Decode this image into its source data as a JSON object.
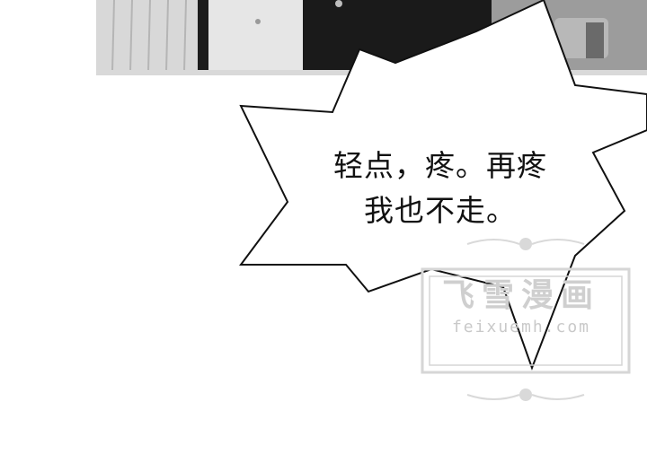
{
  "speech": {
    "line1": "轻点，疼。再疼",
    "line2": "我也不走。"
  },
  "watermark": {
    "title": "飞雪漫画",
    "url": "feixuemh.com"
  },
  "colors": {
    "background": "#ffffff",
    "ink": "#111111",
    "watermark": "#cfcfcf"
  }
}
